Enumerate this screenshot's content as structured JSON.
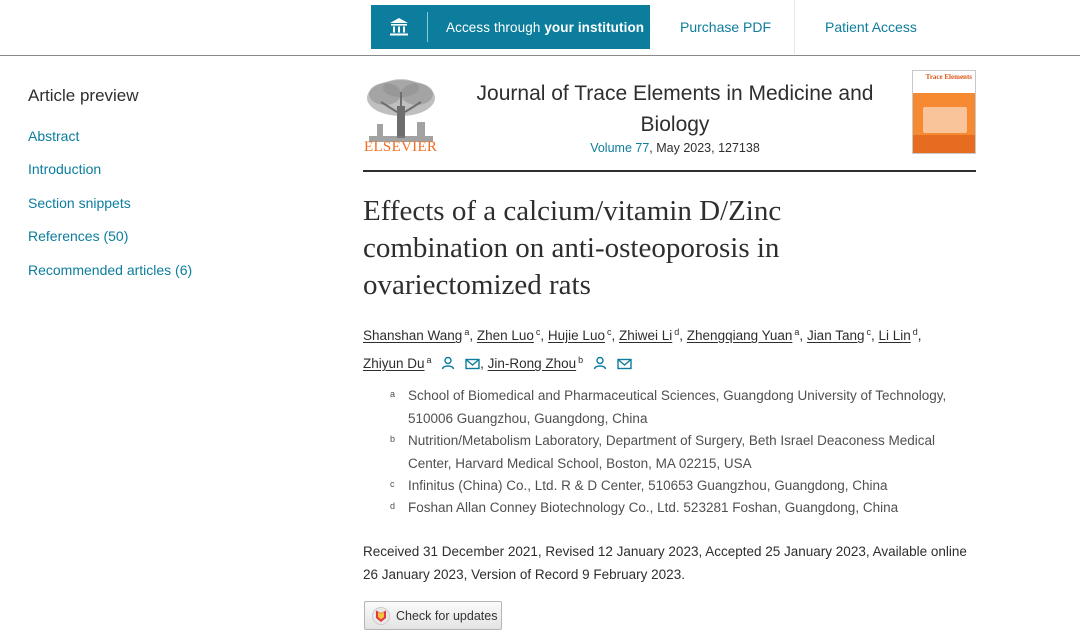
{
  "topbar": {
    "access_prefix": "Access through ",
    "access_bold": "your institution",
    "purchase_pdf": "Purchase PDF",
    "patient_access": "Patient Access"
  },
  "sidebar": {
    "title": "Article preview",
    "items": [
      {
        "label": "Abstract"
      },
      {
        "label": "Introduction"
      },
      {
        "label": "Section snippets"
      },
      {
        "label": "References (50)"
      },
      {
        "label": "Recommended articles (6)"
      }
    ]
  },
  "journal": {
    "publisher": "ELSEVIER",
    "title": "Journal of Trace Elements in Medicine and Biology",
    "volume_link": "Volume 77",
    "volume_rest": ", May 2023, 127138",
    "cover_title": "Trace Elements"
  },
  "article": {
    "title": "Effects of a calcium/vitamin D/Zinc combination on anti-osteoporosis in ovariectomized rats"
  },
  "authors": [
    {
      "name": "Shanshan Wang",
      "sup": "a"
    },
    {
      "name": "Zhen Luo",
      "sup": "c"
    },
    {
      "name": "Hujie Luo",
      "sup": "c"
    },
    {
      "name": "Zhiwei Li",
      "sup": "d"
    },
    {
      "name": "Zhengqiang Yuan",
      "sup": "a"
    },
    {
      "name": "Jian Tang",
      "sup": "c"
    },
    {
      "name": "Li Lin",
      "sup": "d"
    },
    {
      "name": "Zhiyun Du",
      "sup": "a"
    },
    {
      "name": "Jin-Rong Zhou",
      "sup": "b"
    }
  ],
  "affiliations": [
    {
      "mark": "a",
      "text": "School of Biomedical and Pharmaceutical Sciences, Guangdong University of Technology, 510006 Guangzhou, Guangdong, China"
    },
    {
      "mark": "b",
      "text": "Nutrition/Metabolism Laboratory, Department of Surgery, Beth Israel Deaconess Medical Center, Harvard Medical School, Boston, MA 02215, USA"
    },
    {
      "mark": "c",
      "text": "Infinitus (China) Co., Ltd. R & D Center, 510653 Guangzhou, Guangdong, China"
    },
    {
      "mark": "d",
      "text": "Foshan Allan Conney Biotechnology Co., Ltd. 523281 Foshan, Guangdong, China"
    }
  ],
  "dates": "Received 31 December 2021, Revised 12 January 2023, Accepted 25 January 2023, Available online 26 January 2023, Version of Record 9 February 2023.",
  "check_updates": "Check for updates",
  "colors": {
    "accent": "#0c7d9d",
    "elsevier_orange": "#f36d21",
    "text": "#2e2e2e"
  }
}
